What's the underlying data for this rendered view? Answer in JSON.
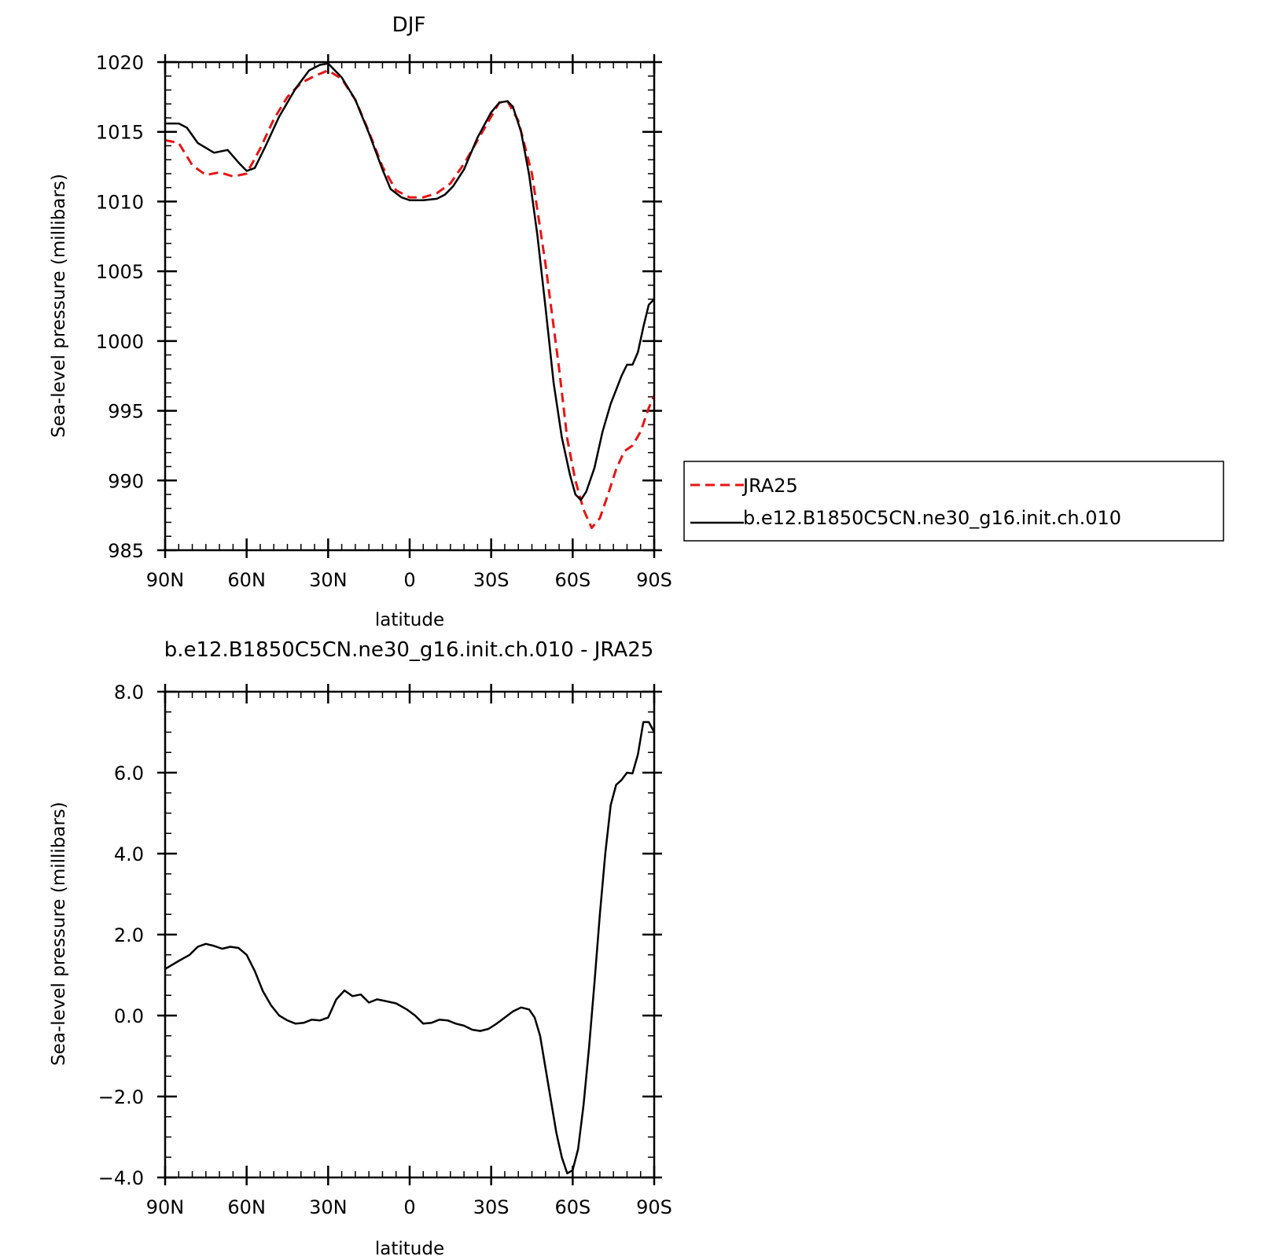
{
  "colors": {
    "reference": "#e81414",
    "model": "#000000"
  },
  "chart_data": [
    {
      "type": "line",
      "title": "DJF",
      "xlabel": "latitude",
      "ylabel": "Sea-level pressure (millibars)",
      "xlim": [
        -90,
        90
      ],
      "ylim": [
        985,
        1020
      ],
      "x_ticks": [
        -90,
        -60,
        -30,
        0,
        30,
        60,
        90
      ],
      "x_tick_labels": [
        "90N",
        "60N",
        "30N",
        "0",
        "30S",
        "60S",
        "90S"
      ],
      "y_ticks": [
        985,
        990,
        995,
        1000,
        1005,
        1010,
        1015,
        1020
      ],
      "y_tick_labels": [
        "985",
        "990",
        "995",
        "1000",
        "1005",
        "1010",
        "1015",
        "1020"
      ],
      "legend": {
        "placement": "right",
        "entries": [
          "JRA25",
          "b.e12.B1850C5CN.ne30_g16.init.ch.010"
        ]
      },
      "grid": false,
      "series": [
        {
          "name": "JRA25",
          "color": "#e81414",
          "style": "dashed",
          "points": [
            [
              -90,
              1014.4
            ],
            [
              -85,
              1014.2
            ],
            [
              -80,
              1012.6
            ],
            [
              -75,
              1011.9
            ],
            [
              -70,
              1012.1
            ],
            [
              -65,
              1011.8
            ],
            [
              -60,
              1012.0
            ],
            [
              -55,
              1013.8
            ],
            [
              -50,
              1015.9
            ],
            [
              -45,
              1017.5
            ],
            [
              -40,
              1018.5
            ],
            [
              -35,
              1019.0
            ],
            [
              -30,
              1019.4
            ],
            [
              -25,
              1018.8
            ],
            [
              -20,
              1017.3
            ],
            [
              -15,
              1015.0
            ],
            [
              -10,
              1012.5
            ],
            [
              -5,
              1010.8
            ],
            [
              0,
              1010.3
            ],
            [
              5,
              1010.3
            ],
            [
              10,
              1010.6
            ],
            [
              15,
              1011.3
            ],
            [
              20,
              1012.7
            ],
            [
              25,
              1014.4
            ],
            [
              30,
              1016.1
            ],
            [
              33,
              1017.1
            ],
            [
              36,
              1017.2
            ],
            [
              40,
              1015.8
            ],
            [
              45,
              1012.0
            ],
            [
              50,
              1005.5
            ],
            [
              55,
              998.0
            ],
            [
              58,
              993.0
            ],
            [
              61,
              990.0
            ],
            [
              64,
              987.9
            ],
            [
              67,
              986.6
            ],
            [
              70,
              987.3
            ],
            [
              73,
              989.0
            ],
            [
              76,
              990.8
            ],
            [
              79,
              992.1
            ],
            [
              82,
              992.5
            ],
            [
              85,
              993.5
            ],
            [
              88,
              995.2
            ],
            [
              90,
              996.1
            ]
          ]
        },
        {
          "name": "b.e12.B1850C5CN.ne30_g16.init.ch.010",
          "color": "#000000",
          "style": "solid",
          "points": [
            [
              -90,
              1015.6
            ],
            [
              -85,
              1015.6
            ],
            [
              -82,
              1015.3
            ],
            [
              -78,
              1014.2
            ],
            [
              -72,
              1013.5
            ],
            [
              -67,
              1013.7
            ],
            [
              -63,
              1012.8
            ],
            [
              -60,
              1012.2
            ],
            [
              -57,
              1012.4
            ],
            [
              -53,
              1014.0
            ],
            [
              -48,
              1016.1
            ],
            [
              -42,
              1018.1
            ],
            [
              -37,
              1019.4
            ],
            [
              -33,
              1019.8
            ],
            [
              -30,
              1019.9
            ],
            [
              -25,
              1018.9
            ],
            [
              -20,
              1017.3
            ],
            [
              -15,
              1014.9
            ],
            [
              -10,
              1012.3
            ],
            [
              -7,
              1010.9
            ],
            [
              -3,
              1010.3
            ],
            [
              0,
              1010.1
            ],
            [
              5,
              1010.1
            ],
            [
              10,
              1010.2
            ],
            [
              13,
              1010.5
            ],
            [
              16,
              1011.1
            ],
            [
              20,
              1012.3
            ],
            [
              25,
              1014.6
            ],
            [
              30,
              1016.4
            ],
            [
              33,
              1017.1
            ],
            [
              36,
              1017.2
            ],
            [
              38,
              1016.8
            ],
            [
              41,
              1015.0
            ],
            [
              44,
              1011.9
            ],
            [
              47,
              1007.6
            ],
            [
              50,
              1002.4
            ],
            [
              53,
              997.0
            ],
            [
              56,
              993.1
            ],
            [
              59,
              990.4
            ],
            [
              61,
              989.0
            ],
            [
              63,
              988.6
            ],
            [
              65,
              989.2
            ],
            [
              68,
              990.9
            ],
            [
              71,
              993.5
            ],
            [
              74,
              995.5
            ],
            [
              78,
              997.5
            ],
            [
              80,
              998.3
            ],
            [
              82,
              998.3
            ],
            [
              84,
              999.2
            ],
            [
              86,
              1001.0
            ],
            [
              88,
              1002.6
            ],
            [
              90,
              1003.0
            ]
          ]
        }
      ]
    },
    {
      "type": "line",
      "title": "b.e12.B1850C5CN.ne30_g16.init.ch.010 - JRA25",
      "xlabel": "latitude",
      "ylabel": "Sea-level pressure (millibars)",
      "xlim": [
        -90,
        90
      ],
      "ylim": [
        -4.0,
        8.0
      ],
      "x_ticks": [
        -90,
        -60,
        -30,
        0,
        30,
        60,
        90
      ],
      "x_tick_labels": [
        "90N",
        "60N",
        "30N",
        "0",
        "30S",
        "60S",
        "90S"
      ],
      "y_ticks": [
        -4.0,
        -2.0,
        0.0,
        2.0,
        4.0,
        6.0,
        8.0
      ],
      "y_tick_labels": [
        "−4.0",
        "−2.0",
        "0.0",
        "2.0",
        "4.0",
        "6.0",
        "8.0"
      ],
      "grid": false,
      "series": [
        {
          "color": "#000000",
          "style": "solid",
          "points": [
            [
              -90,
              1.15
            ],
            [
              -85,
              1.35
            ],
            [
              -81,
              1.5
            ],
            [
              -78,
              1.7
            ],
            [
              -75,
              1.77
            ],
            [
              -72,
              1.72
            ],
            [
              -69,
              1.65
            ],
            [
              -66,
              1.7
            ],
            [
              -63,
              1.67
            ],
            [
              -60,
              1.5
            ],
            [
              -57,
              1.1
            ],
            [
              -54,
              0.6
            ],
            [
              -51,
              0.25
            ],
            [
              -48,
              0.0
            ],
            [
              -45,
              -0.12
            ],
            [
              -42,
              -0.2
            ],
            [
              -39,
              -0.18
            ],
            [
              -36,
              -0.1
            ],
            [
              -33,
              -0.12
            ],
            [
              -30,
              -0.05
            ],
            [
              -27,
              0.4
            ],
            [
              -24,
              0.62
            ],
            [
              -21,
              0.48
            ],
            [
              -18,
              0.52
            ],
            [
              -15,
              0.32
            ],
            [
              -12,
              0.4
            ],
            [
              -9,
              0.36
            ],
            [
              -5,
              0.3
            ],
            [
              -1,
              0.15
            ],
            [
              2,
              0.0
            ],
            [
              5,
              -0.2
            ],
            [
              8,
              -0.18
            ],
            [
              11,
              -0.1
            ],
            [
              14,
              -0.12
            ],
            [
              17,
              -0.2
            ],
            [
              20,
              -0.25
            ],
            [
              23,
              -0.35
            ],
            [
              26,
              -0.38
            ],
            [
              29,
              -0.33
            ],
            [
              32,
              -0.2
            ],
            [
              35,
              -0.05
            ],
            [
              38,
              0.1
            ],
            [
              41,
              0.2
            ],
            [
              44,
              0.15
            ],
            [
              46,
              -0.05
            ],
            [
              48,
              -0.5
            ],
            [
              50,
              -1.3
            ],
            [
              52,
              -2.1
            ],
            [
              54,
              -2.9
            ],
            [
              56,
              -3.5
            ],
            [
              58,
              -3.9
            ],
            [
              60,
              -3.82
            ],
            [
              62,
              -3.3
            ],
            [
              64,
              -2.2
            ],
            [
              66,
              -0.8
            ],
            [
              68,
              0.8
            ],
            [
              70,
              2.5
            ],
            [
              72,
              4.0
            ],
            [
              74,
              5.2
            ],
            [
              76,
              5.7
            ],
            [
              78,
              5.82
            ],
            [
              80,
              6.0
            ],
            [
              82,
              5.98
            ],
            [
              84,
              6.45
            ],
            [
              86,
              7.25
            ],
            [
              88,
              7.25
            ],
            [
              90,
              7.0
            ]
          ]
        }
      ]
    }
  ]
}
